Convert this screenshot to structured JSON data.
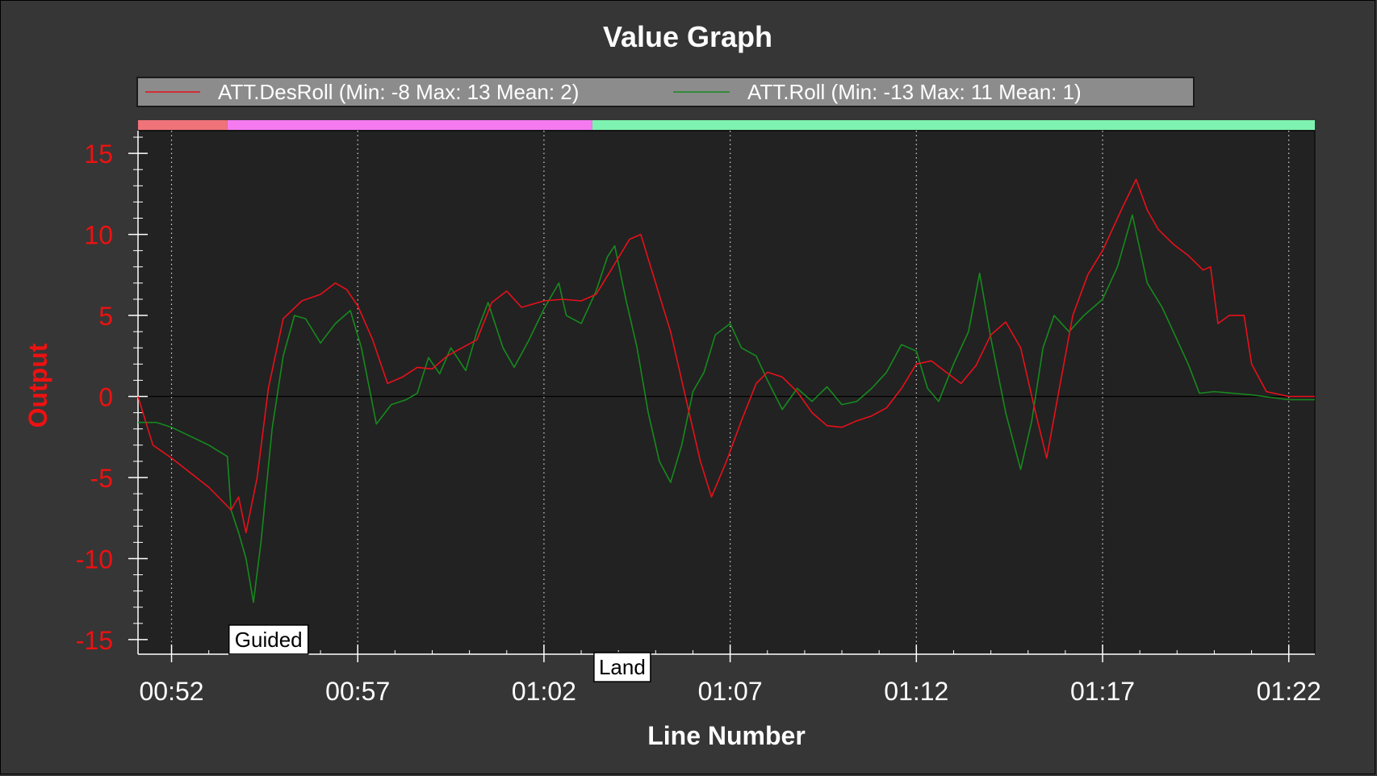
{
  "chart_data": {
    "type": "line",
    "title": "Value Graph",
    "xlabel": "Line Number",
    "ylabel": "Output",
    "x_ticks": [
      "00:52",
      "00:57",
      "01:02",
      "01:07",
      "01:12",
      "01:17",
      "01:22"
    ],
    "x_tick_seconds": [
      52,
      57,
      62,
      67,
      72,
      77,
      82
    ],
    "xlim_seconds": [
      51.1,
      82.7
    ],
    "y_ticks": [
      "15",
      "10",
      "5",
      "0",
      "-5",
      "-10",
      "-15"
    ],
    "y_tick_values": [
      15,
      10,
      5,
      0,
      -5,
      -10,
      -15
    ],
    "ylim": [
      -15.9,
      16.4
    ],
    "grid": "vertical-dotted",
    "legend_position": "top",
    "series": [
      {
        "name": "ATT.DesRoll (Min: -8 Max: 13 Mean: 2)",
        "color": "#e8101a",
        "points": [
          [
            51.1,
            0
          ],
          [
            51.3,
            -1.5
          ],
          [
            51.5,
            -3
          ],
          [
            52,
            -3.8
          ],
          [
            53,
            -5.6
          ],
          [
            53.6,
            -7
          ],
          [
            53.8,
            -6.2
          ],
          [
            54,
            -8.4
          ],
          [
            54.3,
            -5
          ],
          [
            54.6,
            0.5
          ],
          [
            55,
            4.8
          ],
          [
            55.5,
            5.9
          ],
          [
            56,
            6.3
          ],
          [
            56.4,
            7
          ],
          [
            56.7,
            6.6
          ],
          [
            57,
            5.6
          ],
          [
            57.4,
            3.5
          ],
          [
            57.8,
            0.8
          ],
          [
            58.2,
            1.2
          ],
          [
            58.6,
            1.8
          ],
          [
            59,
            1.7
          ],
          [
            59.4,
            2.5
          ],
          [
            59.8,
            3
          ],
          [
            60.2,
            3.5
          ],
          [
            60.6,
            5.8
          ],
          [
            61,
            6.5
          ],
          [
            61.4,
            5.5
          ],
          [
            62,
            5.9
          ],
          [
            62.5,
            6
          ],
          [
            63,
            5.9
          ],
          [
            63.4,
            6.3
          ],
          [
            63.8,
            7.8
          ],
          [
            64.3,
            9.7
          ],
          [
            64.6,
            10
          ],
          [
            65,
            7
          ],
          [
            65.4,
            4
          ],
          [
            65.8,
            0
          ],
          [
            66.2,
            -4
          ],
          [
            66.5,
            -6.2
          ],
          [
            66.9,
            -4
          ],
          [
            67.3,
            -1.5
          ],
          [
            67.7,
            0.8
          ],
          [
            68,
            1.5
          ],
          [
            68.4,
            1.2
          ],
          [
            68.8,
            0.3
          ],
          [
            69.2,
            -1
          ],
          [
            69.6,
            -1.8
          ],
          [
            70,
            -1.9
          ],
          [
            70.4,
            -1.5
          ],
          [
            70.8,
            -1.2
          ],
          [
            71.2,
            -0.7
          ],
          [
            71.6,
            0.5
          ],
          [
            72,
            2
          ],
          [
            72.4,
            2.2
          ],
          [
            72.8,
            1.5
          ],
          [
            73.2,
            0.8
          ],
          [
            73.6,
            1.9
          ],
          [
            74,
            3.8
          ],
          [
            74.4,
            4.6
          ],
          [
            74.8,
            3
          ],
          [
            75.2,
            -1
          ],
          [
            75.5,
            -3.8
          ],
          [
            75.8,
            0
          ],
          [
            76.2,
            5
          ],
          [
            76.6,
            7.5
          ],
          [
            77,
            9
          ],
          [
            77.5,
            11.5
          ],
          [
            77.9,
            13.4
          ],
          [
            78.2,
            11.5
          ],
          [
            78.5,
            10.3
          ],
          [
            78.9,
            9.4
          ],
          [
            79.3,
            8.7
          ],
          [
            79.7,
            7.8
          ],
          [
            79.9,
            8
          ],
          [
            80.1,
            4.5
          ],
          [
            80.4,
            5
          ],
          [
            80.8,
            5
          ],
          [
            81,
            2
          ],
          [
            81.4,
            0.3
          ],
          [
            82,
            0
          ],
          [
            82.7,
            0
          ]
        ]
      },
      {
        "name": "ATT.Roll (Min: -13 Max: 11 Mean: 1)",
        "color": "#168a1e",
        "points": [
          [
            51.1,
            -1.6
          ],
          [
            51.6,
            -1.6
          ],
          [
            52,
            -1.9
          ],
          [
            53,
            -3
          ],
          [
            53.5,
            -3.7
          ],
          [
            53.6,
            -7
          ],
          [
            53.8,
            -8.4
          ],
          [
            54,
            -10
          ],
          [
            54.2,
            -12.7
          ],
          [
            54.4,
            -9
          ],
          [
            54.7,
            -2
          ],
          [
            55,
            2.5
          ],
          [
            55.3,
            5
          ],
          [
            55.6,
            4.8
          ],
          [
            56,
            3.3
          ],
          [
            56.4,
            4.5
          ],
          [
            56.8,
            5.3
          ],
          [
            57.1,
            3
          ],
          [
            57.5,
            -1.7
          ],
          [
            57.9,
            -0.5
          ],
          [
            58.3,
            -0.2
          ],
          [
            58.6,
            0.2
          ],
          [
            58.9,
            2.4
          ],
          [
            59.2,
            1.4
          ],
          [
            59.5,
            3
          ],
          [
            59.9,
            1.6
          ],
          [
            60.2,
            4
          ],
          [
            60.5,
            5.8
          ],
          [
            60.9,
            3
          ],
          [
            61.2,
            1.8
          ],
          [
            61.6,
            3.5
          ],
          [
            62,
            5.4
          ],
          [
            62.4,
            7
          ],
          [
            62.6,
            5
          ],
          [
            63,
            4.5
          ],
          [
            63.4,
            6.5
          ],
          [
            63.7,
            8.6
          ],
          [
            63.9,
            9.3
          ],
          [
            64.2,
            6
          ],
          [
            64.5,
            3
          ],
          [
            64.8,
            -1
          ],
          [
            65.1,
            -4
          ],
          [
            65.4,
            -5.3
          ],
          [
            65.7,
            -3
          ],
          [
            66,
            0.3
          ],
          [
            66.3,
            1.5
          ],
          [
            66.6,
            3.8
          ],
          [
            67,
            4.5
          ],
          [
            67.3,
            3
          ],
          [
            67.7,
            2.5
          ],
          [
            68,
            1
          ],
          [
            68.4,
            -0.8
          ],
          [
            68.8,
            0.5
          ],
          [
            69.2,
            -0.3
          ],
          [
            69.6,
            0.6
          ],
          [
            70,
            -0.5
          ],
          [
            70.4,
            -0.3
          ],
          [
            70.8,
            0.5
          ],
          [
            71.2,
            1.5
          ],
          [
            71.6,
            3.2
          ],
          [
            72,
            2.8
          ],
          [
            72.3,
            0.5
          ],
          [
            72.6,
            -0.3
          ],
          [
            73,
            2
          ],
          [
            73.4,
            4
          ],
          [
            73.7,
            7.6
          ],
          [
            74,
            3.6
          ],
          [
            74.4,
            -1
          ],
          [
            74.8,
            -4.5
          ],
          [
            75.1,
            -1.5
          ],
          [
            75.4,
            3
          ],
          [
            75.7,
            5
          ],
          [
            76.1,
            4
          ],
          [
            76.5,
            5
          ],
          [
            77,
            6
          ],
          [
            77.4,
            8
          ],
          [
            77.8,
            11.2
          ],
          [
            78.2,
            7
          ],
          [
            78.6,
            5.5
          ],
          [
            79,
            3.5
          ],
          [
            79.3,
            2
          ],
          [
            79.6,
            0.2
          ],
          [
            80,
            0.3
          ],
          [
            80.5,
            0.2
          ],
          [
            81,
            0.1
          ],
          [
            82,
            -0.2
          ],
          [
            82.7,
            -0.2
          ]
        ]
      }
    ],
    "mode_bar": [
      {
        "from": 51.1,
        "to": 53.5,
        "color": "#f0737a"
      },
      {
        "from": 53.5,
        "to": 63.3,
        "color": "#f57af0"
      },
      {
        "from": 63.3,
        "to": 82.7,
        "color": "#7ef2b0"
      }
    ],
    "annotations": [
      {
        "text": "Guided",
        "x": 53.5,
        "anchor_y": -15
      },
      {
        "text": "Land",
        "x": 63.3,
        "anchor_y": -16.7
      }
    ]
  }
}
